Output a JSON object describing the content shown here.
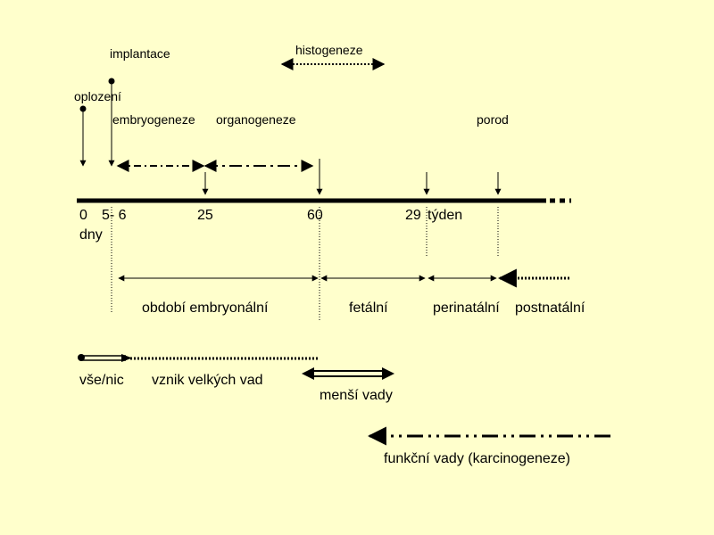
{
  "labels": {
    "implantace": "implantace",
    "histogeneze": "histogeneze",
    "oplozeni": "oplození",
    "embryogeneze": "embryogeneze",
    "organogeneze": "organogeneze",
    "porod": "porod",
    "tick_0": "0",
    "tick_5_6": "5- 6",
    "tick_25": "25",
    "tick_60": "60",
    "tick_29": "29",
    "tyden": "týden",
    "dny": "dny",
    "obdobi_embryonalni": "období embryonální",
    "fetalni": "fetální",
    "perinatalni": "perinatální",
    "postnatalni": "postnatální",
    "vse_nic": "vše/nic",
    "vznik_velkych_vad": "vznik velkých vad",
    "mensi_vady": "menší vady",
    "funkcni_vady": "funkční vady (karcinogeneze)"
  },
  "colors": {
    "background": "#ffffcc",
    "ink": "#000000"
  }
}
